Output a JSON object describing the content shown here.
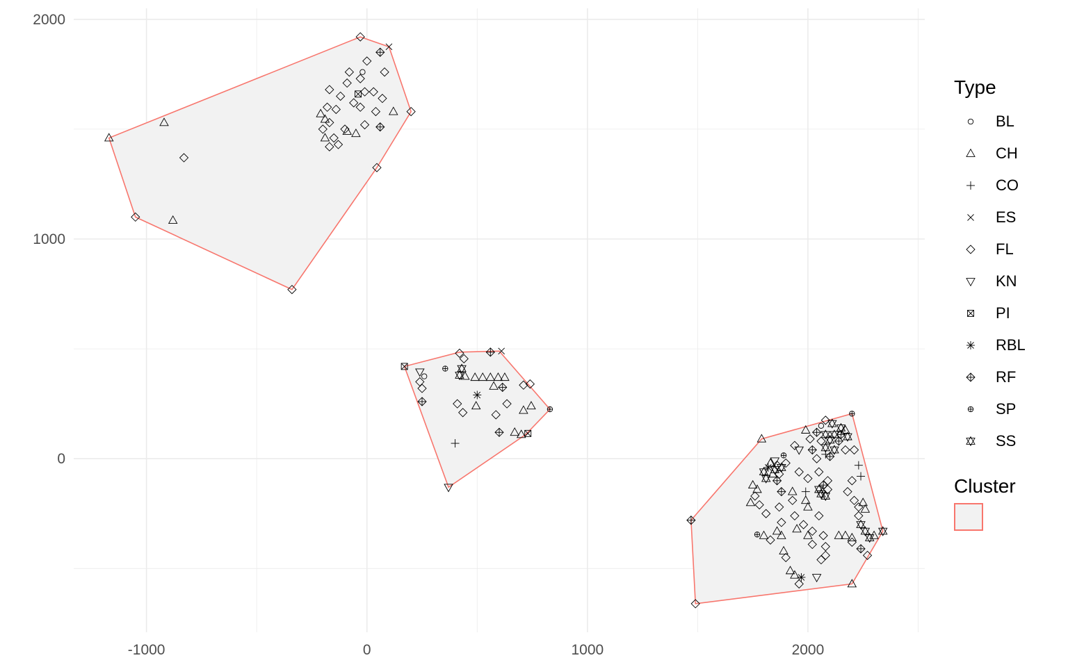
{
  "chart_data": {
    "type": "scatter",
    "title": "",
    "xlabel": "",
    "ylabel": "",
    "xlim": [
      -1330,
      2530
    ],
    "ylim": [
      -790,
      2050
    ],
    "x_ticks": [
      -1000,
      0,
      1000,
      2000
    ],
    "y_ticks": [
      0,
      1000,
      2000
    ],
    "grid": true,
    "legend_position": "right",
    "legend": {
      "type_title": "Type",
      "types": [
        "BL",
        "CH",
        "CO",
        "ES",
        "FL",
        "KN",
        "PI",
        "RBL",
        "RF",
        "SP",
        "SS"
      ],
      "cluster_title": "Cluster",
      "cluster_color": "#F8766D",
      "hull_fill": "#f2f2f2"
    },
    "hulls": [
      [
        [
          -1170,
          1460
        ],
        [
          -1050,
          1100
        ],
        [
          -340,
          770
        ],
        [
          45,
          1325
        ],
        [
          200,
          1580
        ],
        [
          100,
          1875
        ],
        [
          -30,
          1920
        ]
      ],
      [
        [
          170,
          420
        ],
        [
          370,
          -130
        ],
        [
          720,
          110
        ],
        [
          830,
          225
        ],
        [
          600,
          490
        ],
        [
          420,
          485
        ]
      ],
      [
        [
          1470,
          -280
        ],
        [
          1490,
          -660
        ],
        [
          2200,
          -570
        ],
        [
          2340,
          -330
        ],
        [
          2200,
          205
        ],
        [
          1790,
          90
        ]
      ]
    ],
    "points": [
      {
        "type": "CH",
        "x": -1170,
        "y": 1460
      },
      {
        "type": "FL",
        "x": -1050,
        "y": 1100
      },
      {
        "type": "FL",
        "x": -340,
        "y": 770
      },
      {
        "type": "FL",
        "x": 45,
        "y": 1325
      },
      {
        "type": "FL",
        "x": 200,
        "y": 1580
      },
      {
        "type": "ES",
        "x": 100,
        "y": 1875
      },
      {
        "type": "FL",
        "x": -30,
        "y": 1920
      },
      {
        "type": "CH",
        "x": -920,
        "y": 1530
      },
      {
        "type": "FL",
        "x": -830,
        "y": 1370
      },
      {
        "type": "CH",
        "x": -880,
        "y": 1085
      },
      {
        "type": "BL",
        "x": -20,
        "y": 1760
      },
      {
        "type": "RF",
        "x": 60,
        "y": 1850
      },
      {
        "type": "FL",
        "x": 0,
        "y": 1810
      },
      {
        "type": "FL",
        "x": -80,
        "y": 1760
      },
      {
        "type": "FL",
        "x": -30,
        "y": 1730
      },
      {
        "type": "FL",
        "x": -90,
        "y": 1710
      },
      {
        "type": "FL",
        "x": 80,
        "y": 1760
      },
      {
        "type": "FL",
        "x": -170,
        "y": 1680
      },
      {
        "type": "FL",
        "x": -120,
        "y": 1650
      },
      {
        "type": "PI",
        "x": -40,
        "y": 1660
      },
      {
        "type": "FL",
        "x": -10,
        "y": 1670
      },
      {
        "type": "FL",
        "x": 30,
        "y": 1670
      },
      {
        "type": "FL",
        "x": -60,
        "y": 1620
      },
      {
        "type": "FL",
        "x": 70,
        "y": 1640
      },
      {
        "type": "FL",
        "x": -180,
        "y": 1600
      },
      {
        "type": "FL",
        "x": -140,
        "y": 1590
      },
      {
        "type": "FL",
        "x": -30,
        "y": 1600
      },
      {
        "type": "FL",
        "x": 40,
        "y": 1580
      },
      {
        "type": "CH",
        "x": 120,
        "y": 1580
      },
      {
        "type": "CH",
        "x": -210,
        "y": 1570
      },
      {
        "type": "CH",
        "x": -190,
        "y": 1545
      },
      {
        "type": "FL",
        "x": -170,
        "y": 1530
      },
      {
        "type": "FL",
        "x": -200,
        "y": 1500
      },
      {
        "type": "FL",
        "x": -100,
        "y": 1500
      },
      {
        "type": "FL",
        "x": -10,
        "y": 1520
      },
      {
        "type": "RF",
        "x": 60,
        "y": 1510
      },
      {
        "type": "CH",
        "x": -90,
        "y": 1490
      },
      {
        "type": "CH",
        "x": -50,
        "y": 1480
      },
      {
        "type": "FL",
        "x": -150,
        "y": 1460
      },
      {
        "type": "CH",
        "x": -190,
        "y": 1460
      },
      {
        "type": "FL",
        "x": -170,
        "y": 1420
      },
      {
        "type": "FL",
        "x": -130,
        "y": 1430
      },
      {
        "type": "PI",
        "x": 170,
        "y": 420
      },
      {
        "type": "FL",
        "x": 420,
        "y": 480
      },
      {
        "type": "FL",
        "x": 440,
        "y": 455
      },
      {
        "type": "RF",
        "x": 560,
        "y": 485
      },
      {
        "type": "ES",
        "x": 610,
        "y": 490
      },
      {
        "type": "KN",
        "x": 240,
        "y": 395
      },
      {
        "type": "BL",
        "x": 260,
        "y": 375
      },
      {
        "type": "SP",
        "x": 355,
        "y": 410
      },
      {
        "type": "SS",
        "x": 430,
        "y": 410
      },
      {
        "type": "SS",
        "x": 420,
        "y": 380
      },
      {
        "type": "CH",
        "x": 445,
        "y": 375
      },
      {
        "type": "CH",
        "x": 490,
        "y": 370
      },
      {
        "type": "CH",
        "x": 525,
        "y": 370
      },
      {
        "type": "CH",
        "x": 560,
        "y": 370
      },
      {
        "type": "CH",
        "x": 595,
        "y": 370
      },
      {
        "type": "CH",
        "x": 625,
        "y": 370
      },
      {
        "type": "FL",
        "x": 240,
        "y": 350
      },
      {
        "type": "FL",
        "x": 250,
        "y": 320
      },
      {
        "type": "CH",
        "x": 575,
        "y": 330
      },
      {
        "type": "RF",
        "x": 615,
        "y": 325
      },
      {
        "type": "RBL",
        "x": 500,
        "y": 290
      },
      {
        "type": "FL",
        "x": 740,
        "y": 340
      },
      {
        "type": "FL",
        "x": 710,
        "y": 335
      },
      {
        "type": "RF",
        "x": 250,
        "y": 260
      },
      {
        "type": "FL",
        "x": 410,
        "y": 250
      },
      {
        "type": "CH",
        "x": 495,
        "y": 240
      },
      {
        "type": "FL",
        "x": 635,
        "y": 250
      },
      {
        "type": "CH",
        "x": 745,
        "y": 240
      },
      {
        "type": "CH",
        "x": 710,
        "y": 220
      },
      {
        "type": "FL",
        "x": 435,
        "y": 210
      },
      {
        "type": "FL",
        "x": 585,
        "y": 200
      },
      {
        "type": "RF",
        "x": 600,
        "y": 120
      },
      {
        "type": "CH",
        "x": 670,
        "y": 120
      },
      {
        "type": "CH",
        "x": 700,
        "y": 110
      },
      {
        "type": "PI",
        "x": 730,
        "y": 115
      },
      {
        "type": "CO",
        "x": 400,
        "y": 70
      },
      {
        "type": "KN",
        "x": 370,
        "y": -130
      },
      {
        "type": "SP",
        "x": 830,
        "y": 225
      },
      {
        "type": "RF",
        "x": 1470,
        "y": -280
      },
      {
        "type": "FL",
        "x": 1490,
        "y": -660
      },
      {
        "type": "CH",
        "x": 2200,
        "y": -570
      },
      {
        "type": "SS",
        "x": 2340,
        "y": -330
      },
      {
        "type": "SP",
        "x": 2200,
        "y": 205
      },
      {
        "type": "CH",
        "x": 1790,
        "y": 90
      },
      {
        "type": "FL",
        "x": 2080,
        "y": 175
      },
      {
        "type": "SS",
        "x": 2110,
        "y": 160
      },
      {
        "type": "BL",
        "x": 2060,
        "y": 150
      },
      {
        "type": "SS",
        "x": 2150,
        "y": 140
      },
      {
        "type": "CH",
        "x": 2170,
        "y": 130
      },
      {
        "type": "RF",
        "x": 2040,
        "y": 120
      },
      {
        "type": "SS",
        "x": 2080,
        "y": 110
      },
      {
        "type": "SS",
        "x": 2120,
        "y": 110
      },
      {
        "type": "RF",
        "x": 2150,
        "y": 110
      },
      {
        "type": "SS",
        "x": 2180,
        "y": 100
      },
      {
        "type": "CH",
        "x": 1990,
        "y": 130
      },
      {
        "type": "FL",
        "x": 2010,
        "y": 90
      },
      {
        "type": "FL",
        "x": 2060,
        "y": 80
      },
      {
        "type": "SS",
        "x": 2100,
        "y": 85
      },
      {
        "type": "RF",
        "x": 2140,
        "y": 80
      },
      {
        "type": "FL",
        "x": 1940,
        "y": 60
      },
      {
        "type": "KN",
        "x": 1960,
        "y": 40
      },
      {
        "type": "RF",
        "x": 2020,
        "y": 40
      },
      {
        "type": "SS",
        "x": 2080,
        "y": 50
      },
      {
        "type": "SS",
        "x": 2120,
        "y": 40
      },
      {
        "type": "FL",
        "x": 2170,
        "y": 40
      },
      {
        "type": "CO",
        "x": 2080,
        "y": 20
      },
      {
        "type": "FL",
        "x": 2210,
        "y": 40
      },
      {
        "type": "SP",
        "x": 1890,
        "y": 15
      },
      {
        "type": "FL",
        "x": 2040,
        "y": 0
      },
      {
        "type": "RF",
        "x": 2100,
        "y": 10
      },
      {
        "type": "CO",
        "x": 2230,
        "y": -30
      },
      {
        "type": "KN",
        "x": 1850,
        "y": -10
      },
      {
        "type": "CH",
        "x": 1830,
        "y": -20
      },
      {
        "type": "FL",
        "x": 1860,
        "y": -30
      },
      {
        "type": "FL",
        "x": 1900,
        "y": -20
      },
      {
        "type": "RBL",
        "x": 1820,
        "y": -40
      },
      {
        "type": "SS",
        "x": 1850,
        "y": -50
      },
      {
        "type": "SS",
        "x": 1880,
        "y": -40
      },
      {
        "type": "SS",
        "x": 1800,
        "y": -60
      },
      {
        "type": "CH",
        "x": 1840,
        "y": -70
      },
      {
        "type": "FL",
        "x": 1870,
        "y": -70
      },
      {
        "type": "FL",
        "x": 1960,
        "y": -60
      },
      {
        "type": "FL",
        "x": 2050,
        "y": -60
      },
      {
        "type": "CO",
        "x": 2240,
        "y": -80
      },
      {
        "type": "FL",
        "x": 2000,
        "y": -90
      },
      {
        "type": "SS",
        "x": 1810,
        "y": -90
      },
      {
        "type": "RF",
        "x": 1860,
        "y": -100
      },
      {
        "type": "FL",
        "x": 2090,
        "y": -100
      },
      {
        "type": "FL",
        "x": 2200,
        "y": -100
      },
      {
        "type": "CH",
        "x": 1750,
        "y": -120
      },
      {
        "type": "CH",
        "x": 1770,
        "y": -140
      },
      {
        "type": "RF",
        "x": 2070,
        "y": -120
      },
      {
        "type": "SS",
        "x": 2050,
        "y": -140
      },
      {
        "type": "FL",
        "x": 2090,
        "y": -140
      },
      {
        "type": "CO",
        "x": 1990,
        "y": -150
      },
      {
        "type": "RF",
        "x": 1880,
        "y": -150
      },
      {
        "type": "SS",
        "x": 2060,
        "y": -160
      },
      {
        "type": "FL",
        "x": 2180,
        "y": -150
      },
      {
        "type": "CH",
        "x": 1930,
        "y": -150
      },
      {
        "type": "FL",
        "x": 1760,
        "y": -170
      },
      {
        "type": "SS",
        "x": 2080,
        "y": -170
      },
      {
        "type": "CH",
        "x": 1990,
        "y": -190
      },
      {
        "type": "FL",
        "x": 1930,
        "y": -190
      },
      {
        "type": "CH",
        "x": 1740,
        "y": -200
      },
      {
        "type": "FL",
        "x": 2210,
        "y": -190
      },
      {
        "type": "CH",
        "x": 2250,
        "y": -200
      },
      {
        "type": "FL",
        "x": 1780,
        "y": -210
      },
      {
        "type": "FL",
        "x": 1870,
        "y": -220
      },
      {
        "type": "CH",
        "x": 2000,
        "y": -220
      },
      {
        "type": "FL",
        "x": 2230,
        "y": -220
      },
      {
        "type": "CH",
        "x": 2260,
        "y": -230
      },
      {
        "type": "FL",
        "x": 1810,
        "y": -250
      },
      {
        "type": "FL",
        "x": 1940,
        "y": -260
      },
      {
        "type": "FL",
        "x": 2050,
        "y": -260
      },
      {
        "type": "FL",
        "x": 2230,
        "y": -260
      },
      {
        "type": "FL",
        "x": 1880,
        "y": -290
      },
      {
        "type": "FL",
        "x": 1980,
        "y": -300
      },
      {
        "type": "SS",
        "x": 2240,
        "y": -300
      },
      {
        "type": "CH",
        "x": 1950,
        "y": -320
      },
      {
        "type": "CH",
        "x": 1860,
        "y": -330
      },
      {
        "type": "CH",
        "x": 1880,
        "y": -350
      },
      {
        "type": "FL",
        "x": 2020,
        "y": -330
      },
      {
        "type": "SS",
        "x": 2260,
        "y": -330
      },
      {
        "type": "CH",
        "x": 2000,
        "y": -350
      },
      {
        "type": "FL",
        "x": 2070,
        "y": -350
      },
      {
        "type": "SP",
        "x": 1770,
        "y": -345
      },
      {
        "type": "CH",
        "x": 1800,
        "y": -350
      },
      {
        "type": "CH",
        "x": 2140,
        "y": -350
      },
      {
        "type": "CH",
        "x": 2170,
        "y": -350
      },
      {
        "type": "CH",
        "x": 2200,
        "y": -360
      },
      {
        "type": "CH",
        "x": 2300,
        "y": -350
      },
      {
        "type": "FL",
        "x": 1830,
        "y": -370
      },
      {
        "type": "FL",
        "x": 2020,
        "y": -390
      },
      {
        "type": "FL",
        "x": 2200,
        "y": -380
      },
      {
        "type": "SS",
        "x": 2280,
        "y": -360
      },
      {
        "type": "CH",
        "x": 1890,
        "y": -420
      },
      {
        "type": "FL",
        "x": 2080,
        "y": -400
      },
      {
        "type": "RF",
        "x": 2240,
        "y": -410
      },
      {
        "type": "FL",
        "x": 1900,
        "y": -450
      },
      {
        "type": "FL",
        "x": 2080,
        "y": -440
      },
      {
        "type": "FL",
        "x": 2270,
        "y": -440
      },
      {
        "type": "FL",
        "x": 2060,
        "y": -460
      },
      {
        "type": "CH",
        "x": 1920,
        "y": -510
      },
      {
        "type": "CH",
        "x": 1940,
        "y": -530
      },
      {
        "type": "RBL",
        "x": 1970,
        "y": -540
      },
      {
        "type": "KN",
        "x": 2040,
        "y": -540
      },
      {
        "type": "FL",
        "x": 1960,
        "y": -570
      }
    ]
  }
}
